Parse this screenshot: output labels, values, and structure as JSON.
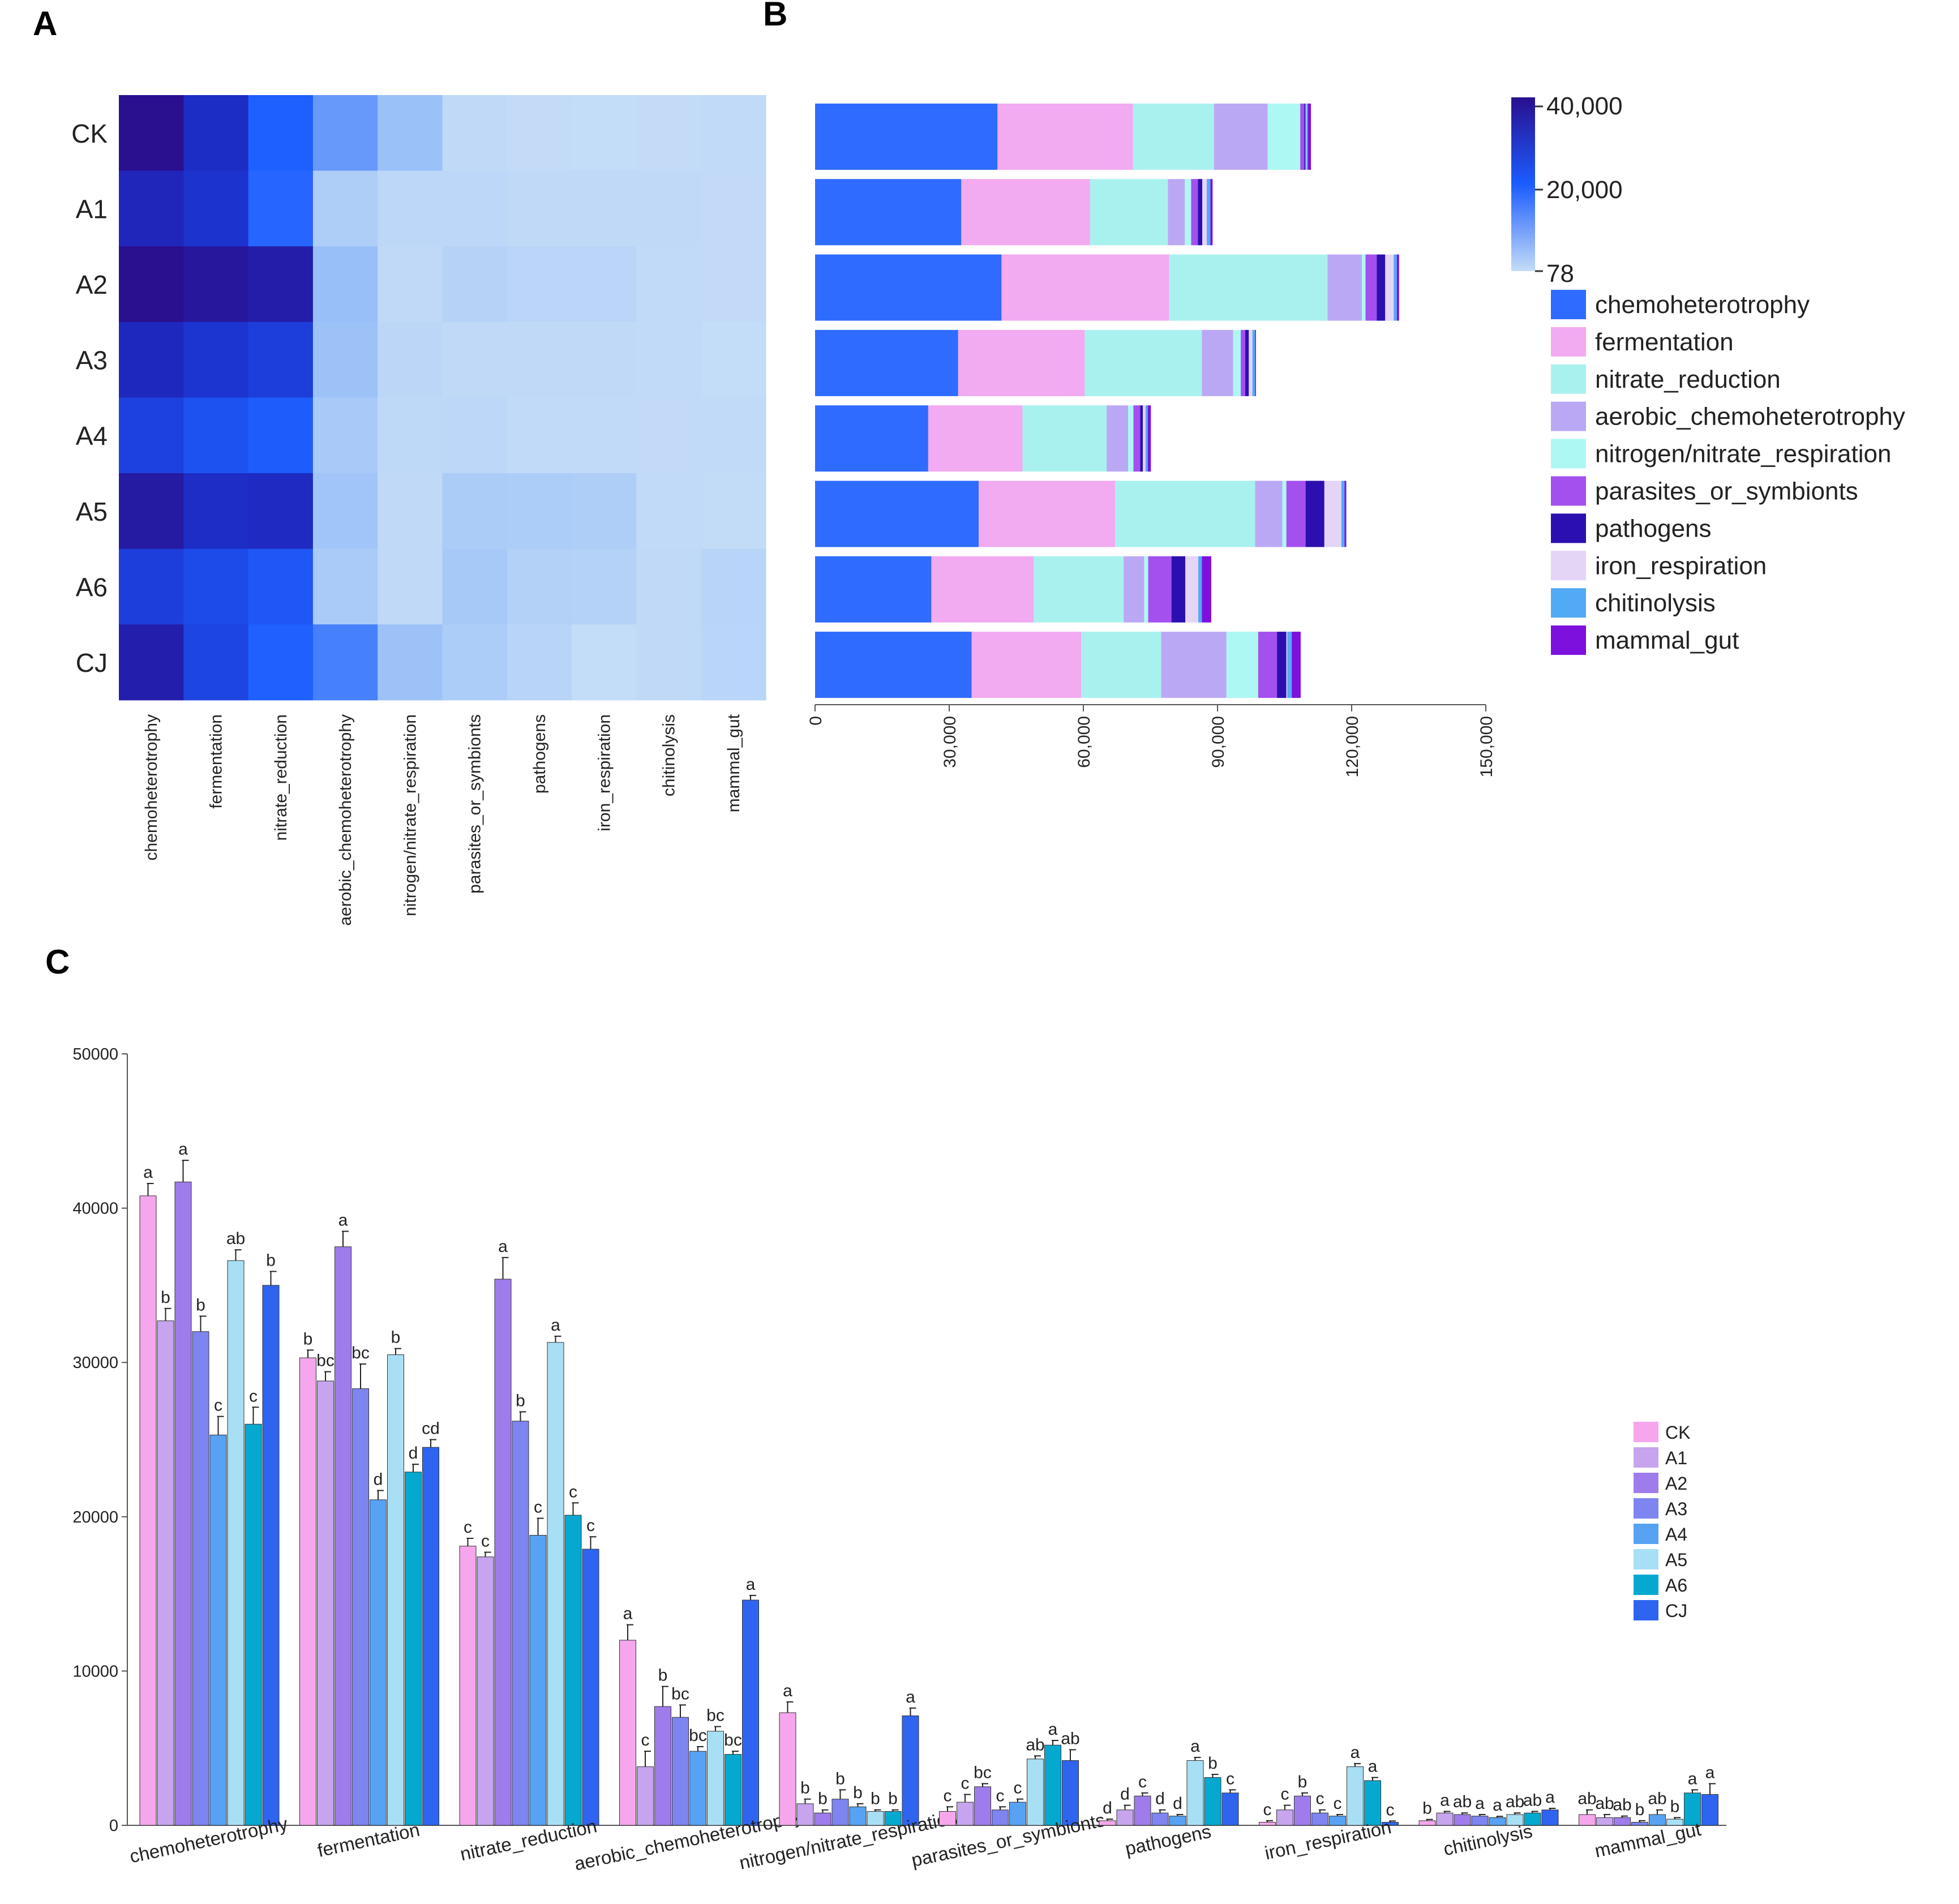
{
  "panels": {
    "a": "A",
    "b": "B",
    "c": "C"
  },
  "colors": {
    "functions": [
      "#2f6bff",
      "#f2aaf0",
      "#a9f1ef",
      "#bba8f4",
      "#aef8f4",
      "#a450ef",
      "#2c0fb0",
      "#e4d4f6",
      "#52aaf6",
      "#7d10dd"
    ],
    "samples": [
      "#f5a6ec",
      "#c7a4ee",
      "#9f7cec",
      "#7e84f0",
      "#58a2f3",
      "#a8dff4",
      "#05a9cf",
      "#2f64f0"
    ]
  },
  "chart_data": [
    {
      "id": "heatmap",
      "type": "heatmap",
      "rows": [
        "CK",
        "A1",
        "A2",
        "A3",
        "A4",
        "A5",
        "A6",
        "CJ"
      ],
      "columns": [
        "chemoheterotrophy",
        "fermentation",
        "nitrate_reduction",
        "aerobic_chemoheterotrophy",
        "nitrogen/nitrate_respiration",
        "parasites_or_symbionts",
        "pathogens",
        "iron_respiration",
        "chitinolysis",
        "mammal_gut"
      ],
      "values": [
        [
          40800,
          30300,
          18100,
          12000,
          7300,
          900,
          300,
          200,
          300,
          700
        ],
        [
          32700,
          28800,
          17400,
          3800,
          1400,
          1500,
          1000,
          1000,
          800,
          500
        ],
        [
          41700,
          37500,
          35400,
          7700,
          800,
          2500,
          1900,
          1900,
          700,
          500
        ],
        [
          32000,
          28300,
          26200,
          7000,
          1700,
          1000,
          800,
          800,
          600,
          200
        ],
        [
          25300,
          21100,
          18800,
          4800,
          1200,
          1500,
          600,
          600,
          500,
          700
        ],
        [
          36600,
          30500,
          31300,
          6100,
          900,
          4300,
          4200,
          3800,
          700,
          400
        ],
        [
          26000,
          22900,
          20100,
          4600,
          900,
          5200,
          3100,
          2900,
          800,
          2100
        ],
        [
          35000,
          24500,
          17900,
          14600,
          7100,
          4200,
          2100,
          200,
          1000,
          2000
        ]
      ],
      "colorbar": {
        "max_label": "40,000",
        "mid_label": "20,000",
        "min_label": "78",
        "min": 78,
        "max": 40000
      }
    },
    {
      "id": "stacked",
      "type": "bar",
      "orientation": "horizontal",
      "stacked": true,
      "categories": [
        "CK",
        "A1",
        "A2",
        "A3",
        "A4",
        "A5",
        "A6",
        "CJ"
      ],
      "xlim": [
        0,
        150000
      ],
      "xticks": [
        "0",
        "30,000",
        "60,000",
        "90,000",
        "120,000",
        "150,000"
      ],
      "legend": [
        "chemoheterotrophy",
        "fermentation",
        "nitrate_reduction",
        "aerobic_chemoheterotrophy",
        "nitrogen/nitrate_respiration",
        "parasites_or_symbionts",
        "pathogens",
        "iron_respiration",
        "chitinolysis",
        "mammal_gut"
      ]
    },
    {
      "id": "grouped",
      "type": "bar",
      "ylim": [
        0,
        50000
      ],
      "yticks": [
        "0",
        "10000",
        "20000",
        "30000",
        "40000",
        "50000"
      ],
      "categories": [
        "chemoheterotrophy",
        "fermentation",
        "nitrate_reduction",
        "aerobic_chemoheterotrophy",
        "nitrogen/nitrate_respiration",
        "parasites_or_symbionts",
        "pathogens",
        "iron_respiration",
        "chitinolysis",
        "mammal_gut"
      ],
      "series": [
        {
          "name": "CK",
          "values": [
            40800,
            30300,
            18100,
            12000,
            7300,
            900,
            300,
            200,
            300,
            700
          ],
          "errors": [
            800,
            500,
            500,
            1000,
            700,
            300,
            100,
            100,
            80,
            300
          ],
          "letters": [
            "a",
            "b",
            "c",
            "a",
            "a",
            "c",
            "d",
            "c",
            "b",
            "ab"
          ]
        },
        {
          "name": "A1",
          "values": [
            32700,
            28800,
            17400,
            3800,
            1400,
            1500,
            1000,
            1000,
            800,
            500
          ],
          "errors": [
            800,
            600,
            300,
            1000,
            300,
            500,
            300,
            300,
            100,
            200
          ],
          "letters": [
            "b",
            "bc",
            "c",
            "c",
            "b",
            "c",
            "d",
            "c",
            "a",
            "ab"
          ]
        },
        {
          "name": "A2",
          "values": [
            41700,
            37500,
            35400,
            7700,
            800,
            2500,
            1900,
            1900,
            700,
            500
          ],
          "errors": [
            1400,
            1000,
            1400,
            1300,
            200,
            200,
            200,
            200,
            100,
            100
          ],
          "letters": [
            "a",
            "a",
            "a",
            "b",
            "b",
            "bc",
            "c",
            "b",
            "ab",
            "ab"
          ]
        },
        {
          "name": "A3",
          "values": [
            32000,
            28300,
            26200,
            7000,
            1700,
            1000,
            800,
            800,
            600,
            200
          ],
          "errors": [
            1000,
            1600,
            600,
            800,
            600,
            200,
            200,
            200,
            100,
            100
          ],
          "letters": [
            "b",
            "bc",
            "b",
            "bc",
            "b",
            "c",
            "d",
            "c",
            "a",
            "b"
          ]
        },
        {
          "name": "A4",
          "values": [
            25300,
            21100,
            18800,
            4800,
            1200,
            1500,
            600,
            600,
            500,
            700
          ],
          "errors": [
            1200,
            600,
            1100,
            300,
            200,
            200,
            100,
            100,
            80,
            300
          ],
          "letters": [
            "c",
            "d",
            "c",
            "bc",
            "b",
            "c",
            "d",
            "c",
            "a",
            "ab"
          ]
        },
        {
          "name": "A5",
          "values": [
            36600,
            30500,
            31300,
            6100,
            900,
            4300,
            4200,
            3800,
            700,
            400
          ],
          "errors": [
            700,
            400,
            400,
            300,
            100,
            200,
            200,
            200,
            100,
            100
          ],
          "letters": [
            "ab",
            "b",
            "a",
            "bc",
            "b",
            "ab",
            "a",
            "a",
            "ab",
            "b"
          ]
        },
        {
          "name": "A6",
          "values": [
            26000,
            22900,
            20100,
            4600,
            900,
            5200,
            3100,
            2900,
            800,
            2100
          ],
          "errors": [
            1100,
            500,
            800,
            200,
            100,
            300,
            200,
            200,
            100,
            200
          ],
          "letters": [
            "c",
            "d",
            "c",
            "bc",
            "b",
            "a",
            "b",
            "a",
            "ab",
            "a"
          ]
        },
        {
          "name": "CJ",
          "values": [
            35000,
            24500,
            17900,
            14600,
            7100,
            4200,
            2100,
            200,
            1000,
            2000
          ],
          "errors": [
            900,
            500,
            800,
            300,
            500,
            700,
            200,
            80,
            100,
            700
          ],
          "letters": [
            "b",
            "cd",
            "c",
            "a",
            "a",
            "ab",
            "c",
            "c",
            "a",
            "a"
          ]
        }
      ]
    }
  ]
}
